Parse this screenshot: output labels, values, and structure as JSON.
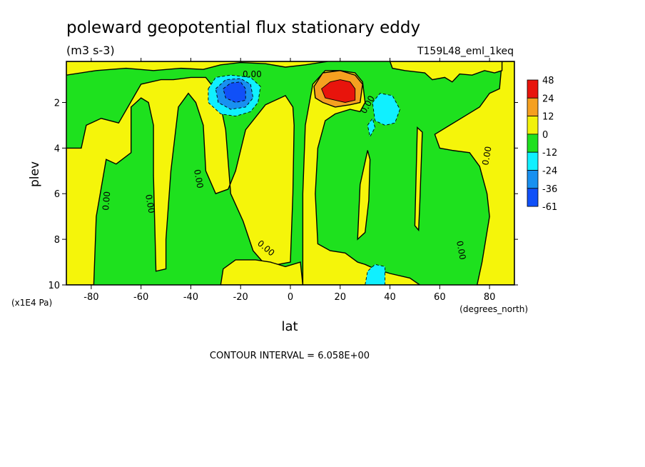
{
  "chart_data": {
    "type": "heatmap",
    "title": "poleward geopotential flux stationary eddy",
    "units": "(m3 s-3)",
    "run_label": "T159L48_eml_1keq",
    "xlabel": "lat",
    "x_units": "(degrees_north)",
    "ylabel": "plev",
    "y_units": "(x1E4 Pa)",
    "xlim": [
      -90,
      90
    ],
    "ylim": [
      10,
      0.2
    ],
    "x_ticks": [
      "-80",
      "-60",
      "-40",
      "-20",
      "0",
      "20",
      "40",
      "60",
      "80"
    ],
    "x_tick_values": [
      -80,
      -60,
      -40,
      -20,
      0,
      20,
      40,
      60,
      80
    ],
    "y_ticks": [
      "2",
      "4",
      "6",
      "8",
      "10"
    ],
    "y_tick_values": [
      2,
      4,
      6,
      8,
      10
    ],
    "contour_interval_text": "CONTOUR INTERVAL = 6.058E+00",
    "contour_label": "0.00",
    "colorbar": {
      "labels": [
        "48",
        "24",
        "12",
        "0",
        "-12",
        "-24",
        "-36",
        "-61"
      ],
      "colors": [
        "#e8140c",
        "#f5a020",
        "#f2f20a",
        "#1ee01e",
        "#10f0ff",
        "#1890f0",
        "#1050f8"
      ]
    },
    "fill_colors": {
      "positive_low": "#f5f50a",
      "negative_low": "#1ee11e",
      "neg_24": "#10f0ff",
      "neg_36": "#1890f0",
      "neg_61": "#1050f8",
      "pos_12": "#f5a020",
      "pos_24": "#e8140c"
    },
    "regions": [
      {
        "sign": "positive",
        "desc": "tongue 47S-35S",
        "points": [
          [
            -47,
            1.0
          ],
          [
            -40,
            0.9
          ],
          [
            -34,
            0.9
          ],
          [
            -29,
            1.6
          ],
          [
            -26,
            3.2
          ],
          [
            -24,
            6
          ],
          [
            -19,
            7.2
          ],
          [
            -15,
            8.5
          ],
          [
            -11,
            9.0
          ],
          [
            -5,
            9.1
          ],
          [
            0,
            9.0
          ],
          [
            1,
            6
          ],
          [
            1.5,
            3
          ],
          [
            1,
            2.2
          ],
          [
            -2,
            1.7
          ],
          [
            -10,
            2.1
          ],
          [
            -18,
            3.2
          ],
          [
            -22,
            5
          ],
          [
            -25,
            5.8
          ],
          [
            -30,
            6
          ],
          [
            -34,
            5.0
          ],
          [
            -35,
            3
          ],
          [
            -38,
            2
          ],
          [
            -41,
            1.6
          ],
          [
            -45,
            2.2
          ],
          [
            -48,
            5
          ],
          [
            -50,
            8
          ],
          [
            -50,
            9.3
          ],
          [
            -54,
            9.4
          ],
          [
            -55,
            5.2
          ],
          [
            -55,
            3.0
          ],
          [
            -57,
            2.0
          ],
          [
            -60,
            1.8
          ],
          [
            -64,
            2.2
          ],
          [
            -64,
            4.2
          ],
          [
            -70,
            4.7
          ],
          [
            -74,
            4.5
          ],
          [
            -78,
            7
          ],
          [
            -79,
            10
          ],
          [
            -90,
            10
          ],
          [
            -90,
            4
          ],
          [
            -84,
            4
          ],
          [
            -82,
            3.0
          ],
          [
            -76,
            2.7
          ],
          [
            -69,
            2.9
          ],
          [
            -60,
            1.2
          ],
          [
            -52,
            1.0
          ]
        ]
      },
      {
        "sign": "positive",
        "desc": "band 5N-22N",
        "points": [
          [
            5,
            10
          ],
          [
            5,
            6
          ],
          [
            6,
            3
          ],
          [
            9,
            1.2
          ],
          [
            14,
            0.6
          ],
          [
            20,
            0.6
          ],
          [
            26,
            0.7
          ],
          [
            29,
            1.1
          ],
          [
            30,
            2.0
          ],
          [
            28,
            2.4
          ],
          [
            24,
            2.3
          ],
          [
            18,
            2.5
          ],
          [
            14,
            2.8
          ],
          [
            11,
            4
          ],
          [
            10,
            6
          ],
          [
            11,
            8.2
          ],
          [
            16,
            8.5
          ],
          [
            22,
            8.6
          ],
          [
            27,
            9.0
          ],
          [
            30,
            9.1
          ],
          [
            34,
            9.3
          ],
          [
            40,
            9.5
          ],
          [
            48,
            9.7
          ],
          [
            52,
            10
          ]
        ]
      },
      {
        "sign": "positive",
        "desc": "right band",
        "points": [
          [
            60,
            4.0
          ],
          [
            65,
            4.1
          ],
          [
            72,
            4.2
          ],
          [
            76,
            4.8
          ],
          [
            79,
            6
          ],
          [
            80,
            7
          ],
          [
            77,
            9
          ],
          [
            75,
            10
          ],
          [
            90,
            10
          ],
          [
            90,
            0.2
          ],
          [
            85,
            0.2
          ],
          [
            84,
            1.4
          ],
          [
            80,
            1.6
          ],
          [
            76,
            2.2
          ],
          [
            70,
            2.6
          ],
          [
            64,
            3.0
          ],
          [
            58,
            3.4
          ]
        ]
      },
      {
        "sign": "positive",
        "desc": "spike 52N",
        "points": [
          [
            51,
            3.1
          ],
          [
            53,
            3.3
          ],
          [
            52,
            6.4
          ],
          [
            51.5,
            7.6
          ],
          [
            50,
            7.4
          ]
        ]
      },
      {
        "sign": "positive",
        "desc": "spike 30N",
        "points": [
          [
            28,
            5.6
          ],
          [
            31,
            4.1
          ],
          [
            32,
            4.5
          ],
          [
            31.5,
            6.3
          ],
          [
            30,
            7.7
          ],
          [
            27,
            8.0
          ]
        ]
      },
      {
        "sign": "positive",
        "desc": "lower band 28S-5N",
        "points": [
          [
            -28,
            10
          ],
          [
            -27,
            9.3
          ],
          [
            -22,
            8.9
          ],
          [
            -14,
            8.9
          ],
          [
            -8,
            9.0
          ],
          [
            -2,
            9.2
          ],
          [
            4,
            9.0
          ],
          [
            5,
            10
          ]
        ]
      },
      {
        "sign": "positive",
        "desc": "top strip",
        "points": [
          [
            -90,
            0.2
          ],
          [
            -90,
            0.8
          ],
          [
            -78,
            0.6
          ],
          [
            -66,
            0.5
          ],
          [
            -55,
            0.6
          ],
          [
            -44,
            0.5
          ],
          [
            -35,
            0.55
          ],
          [
            -28,
            0.35
          ],
          [
            -20,
            0.25
          ],
          [
            -10,
            0.3
          ],
          [
            -2,
            0.45
          ],
          [
            6,
            0.35
          ],
          [
            15,
            0.2
          ]
        ]
      },
      {
        "sign": "positive",
        "desc": "top strip right",
        "points": [
          [
            40,
            0.2
          ],
          [
            41,
            0.5
          ],
          [
            46,
            0.6
          ],
          [
            54,
            0.7
          ],
          [
            57,
            1.0
          ],
          [
            62,
            0.9
          ],
          [
            65,
            1.1
          ],
          [
            68,
            0.75
          ],
          [
            73,
            0.8
          ],
          [
            78,
            0.6
          ],
          [
            82,
            0.7
          ],
          [
            85,
            0.6
          ],
          [
            85,
            0.2
          ]
        ]
      },
      {
        "sign": "pos_12",
        "desc": "NH upper max outer",
        "points": [
          [
            9.5,
            1.3
          ],
          [
            13,
            0.7
          ],
          [
            20,
            0.6
          ],
          [
            26,
            0.8
          ],
          [
            29,
            1.2
          ],
          [
            28,
            2.0
          ],
          [
            24,
            2.1
          ],
          [
            18,
            2.2
          ],
          [
            13,
            2.0
          ],
          [
            10,
            1.8
          ]
        ]
      },
      {
        "sign": "pos_24",
        "desc": "NH upper max core",
        "points": [
          [
            12.5,
            1.4
          ],
          [
            16,
            1.1
          ],
          [
            20,
            1.0
          ],
          [
            24,
            1.1
          ],
          [
            26,
            1.4
          ],
          [
            26,
            1.9
          ],
          [
            22,
            2.0
          ],
          [
            18,
            1.9
          ],
          [
            14,
            1.8
          ]
        ]
      },
      {
        "sign": "neg_24",
        "desc": "SH upper min outer",
        "points": [
          [
            -33,
            1.4
          ],
          [
            -30,
            0.9
          ],
          [
            -24,
            0.8
          ],
          [
            -16,
            0.9
          ],
          [
            -12,
            1.3
          ],
          [
            -13,
            2.0
          ],
          [
            -16,
            2.4
          ],
          [
            -22,
            2.6
          ],
          [
            -28,
            2.5
          ],
          [
            -33,
            2.0
          ]
        ]
      },
      {
        "sign": "neg_36",
        "desc": "SH upper min mid",
        "points": [
          [
            -30,
            1.4
          ],
          [
            -26,
            1.0
          ],
          [
            -20,
            0.95
          ],
          [
            -16,
            1.2
          ],
          [
            -15,
            1.8
          ],
          [
            -18,
            2.2
          ],
          [
            -24,
            2.3
          ],
          [
            -29,
            2.0
          ]
        ]
      },
      {
        "sign": "neg_61",
        "desc": "SH upper min core",
        "points": [
          [
            -27,
            1.4
          ],
          [
            -24,
            1.15
          ],
          [
            -20,
            1.1
          ],
          [
            -18,
            1.4
          ],
          [
            -18,
            1.9
          ],
          [
            -22,
            2.0
          ],
          [
            -26,
            1.8
          ]
        ]
      },
      {
        "sign": "neg_24",
        "desc": "NH cyan blob",
        "points": [
          [
            33,
            2.0
          ],
          [
            36,
            1.6
          ],
          [
            41,
            1.7
          ],
          [
            44,
            2.3
          ],
          [
            42,
            2.9
          ],
          [
            38,
            3.0
          ],
          [
            34,
            2.8
          ]
        ]
      },
      {
        "sign": "neg_24",
        "desc": "NH cyan drip",
        "points": [
          [
            31,
            3.0
          ],
          [
            33,
            2.7
          ],
          [
            34,
            3.1
          ],
          [
            32,
            3.5
          ]
        ]
      },
      {
        "sign": "neg_24",
        "desc": "NH lower cyan",
        "points": [
          [
            30,
            10
          ],
          [
            31,
            9.4
          ],
          [
            34,
            9.1
          ],
          [
            38,
            9.2
          ],
          [
            38,
            10
          ]
        ]
      }
    ]
  }
}
